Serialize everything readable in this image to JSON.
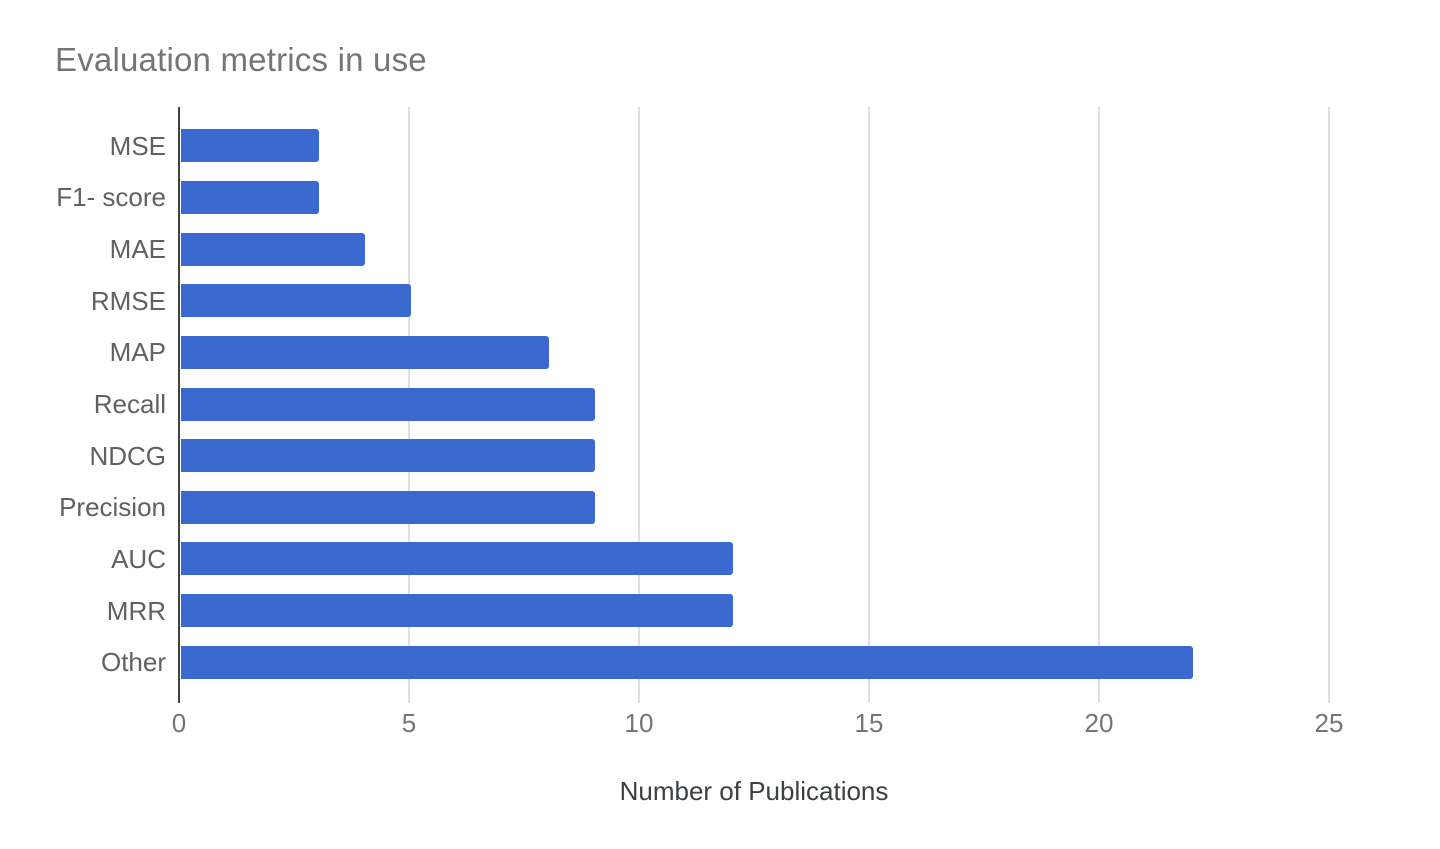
{
  "chart_data": {
    "type": "bar",
    "orientation": "horizontal",
    "title": "Evaluation metrics in use",
    "categories": [
      "MSE",
      "F1- score",
      "MAE",
      "RMSE",
      "MAP",
      "Recall",
      "NDCG",
      "Precision",
      "AUC",
      "MRR",
      "Other"
    ],
    "values": [
      3,
      3,
      4,
      5,
      8,
      9,
      9,
      9,
      12,
      12,
      22
    ],
    "xlabel": "Number of Publications",
    "xlim": [
      0,
      25
    ],
    "xticks": [
      0,
      5,
      10,
      15,
      20,
      25
    ],
    "grid": "vertical gridlines on, horizontal off",
    "legend_position": "none",
    "colors": {
      "bar": "#3a6ad0",
      "gridline": "#e0e0e0",
      "axis_line": "#424242",
      "title_text": "#757575",
      "category_text": "#616161",
      "tick_text": "#757575",
      "axis_label_text": "#3c4043",
      "background": "#ffffff"
    }
  }
}
